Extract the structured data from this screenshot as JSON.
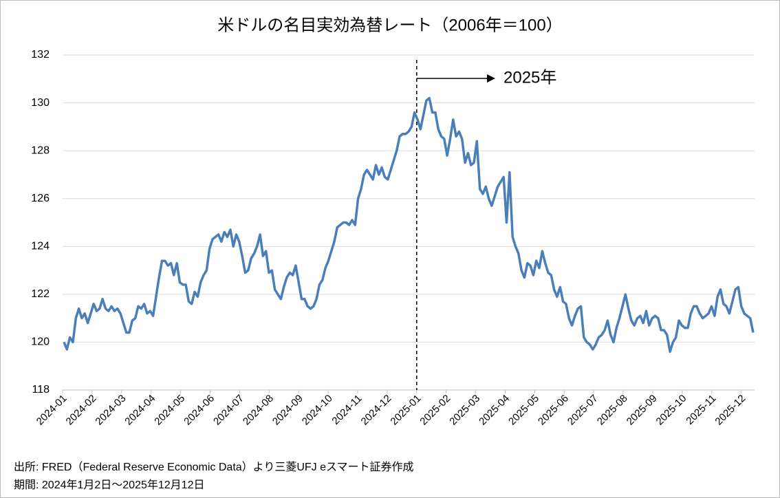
{
  "chart_data": {
    "type": "line",
    "title": "米ドルの名目実効為替レート（2006年＝100）",
    "annotation": "2025年",
    "notes": [
      "出所: FRED（Federal Reserve Economic Data）より三菱UFJ eスマート証券作成",
      "期間: 2024年1月2日～2025年12月12日"
    ],
    "xticks": [
      "2024-01",
      "2024-02",
      "2024-03",
      "2024-04",
      "2024-05",
      "2024-06",
      "2024-07",
      "2024-08",
      "2024-09",
      "2024-10",
      "2024-11",
      "2024-12",
      "2025-01",
      "2025-02",
      "2025-03",
      "2025-04",
      "2025-05",
      "2025-06",
      "2025-07",
      "2025-08",
      "2025-09",
      "2025-10",
      "2025-11",
      "2025-12"
    ],
    "ylim": [
      118,
      132
    ],
    "yticks": [
      118,
      120,
      122,
      124,
      126,
      128,
      130,
      132
    ],
    "grid": true,
    "series": [
      {
        "color": "#4a7ebb",
        "values": [
          120.0,
          119.7,
          120.2,
          120.0,
          121.0,
          121.4,
          121.0,
          121.2,
          120.8,
          121.2,
          121.6,
          121.3,
          121.4,
          121.8,
          121.4,
          121.3,
          121.5,
          121.3,
          121.4,
          121.2,
          120.8,
          120.4,
          120.4,
          120.9,
          121.0,
          121.5,
          121.4,
          121.6,
          121.2,
          121.3,
          121.1,
          121.9,
          122.7,
          123.4,
          123.4,
          123.2,
          123.3,
          122.8,
          123.3,
          122.5,
          122.4,
          122.4,
          121.7,
          121.6,
          122.1,
          121.9,
          122.5,
          122.8,
          123.0,
          123.9,
          124.3,
          124.4,
          124.5,
          124.2,
          124.6,
          124.4,
          124.7,
          124.0,
          124.5,
          124.2,
          123.6,
          122.9,
          123.0,
          123.5,
          123.7,
          124.0,
          124.5,
          123.6,
          123.8,
          122.9,
          123.0,
          122.2,
          122.0,
          121.8,
          122.3,
          122.7,
          122.9,
          122.8,
          123.2,
          122.5,
          121.8,
          121.8,
          121.5,
          121.4,
          121.5,
          121.8,
          122.4,
          122.6,
          123.1,
          123.4,
          123.8,
          124.2,
          124.8,
          124.9,
          125.0,
          125.0,
          124.9,
          125.1,
          124.9,
          126.0,
          126.4,
          127.0,
          127.2,
          127.0,
          126.8,
          127.4,
          127.0,
          127.3,
          126.9,
          126.8,
          127.2,
          127.6,
          128.0,
          128.6,
          128.7,
          128.7,
          128.8,
          129.0,
          129.6,
          129.3,
          128.9,
          129.5,
          130.1,
          130.2,
          129.6,
          129.6,
          128.9,
          128.6,
          128.5,
          127.8,
          128.5,
          129.3,
          128.6,
          128.8,
          128.5,
          127.5,
          127.9,
          127.4,
          127.5,
          128.4,
          126.4,
          126.2,
          126.5,
          126.0,
          125.7,
          126.1,
          126.5,
          126.7,
          126.9,
          125.0,
          127.1,
          124.4,
          124.0,
          123.7,
          123.0,
          122.7,
          123.3,
          123.2,
          122.8,
          123.4,
          123.1,
          123.8,
          123.3,
          122.9,
          122.8,
          122.2,
          121.9,
          122.3,
          121.7,
          121.6,
          121.0,
          120.7,
          121.1,
          121.4,
          121.5,
          120.2,
          120.0,
          119.9,
          119.7,
          119.9,
          120.2,
          120.3,
          120.5,
          120.9,
          120.3,
          120.0,
          120.6,
          121.0,
          121.5,
          122.0,
          121.4,
          120.9,
          120.7,
          121.0,
          121.1,
          120.8,
          121.3,
          120.7,
          121.0,
          121.1,
          121.0,
          120.5,
          120.5,
          120.3,
          119.6,
          120.0,
          120.2,
          120.9,
          120.7,
          120.6,
          120.6,
          121.2,
          121.5,
          121.5,
          121.2,
          121.0,
          121.1,
          121.2,
          121.5,
          121.1,
          121.9,
          122.2,
          121.6,
          121.5,
          121.2,
          121.7,
          122.2,
          122.3,
          121.5,
          121.2,
          121.1,
          121.0,
          120.4
        ]
      }
    ]
  }
}
